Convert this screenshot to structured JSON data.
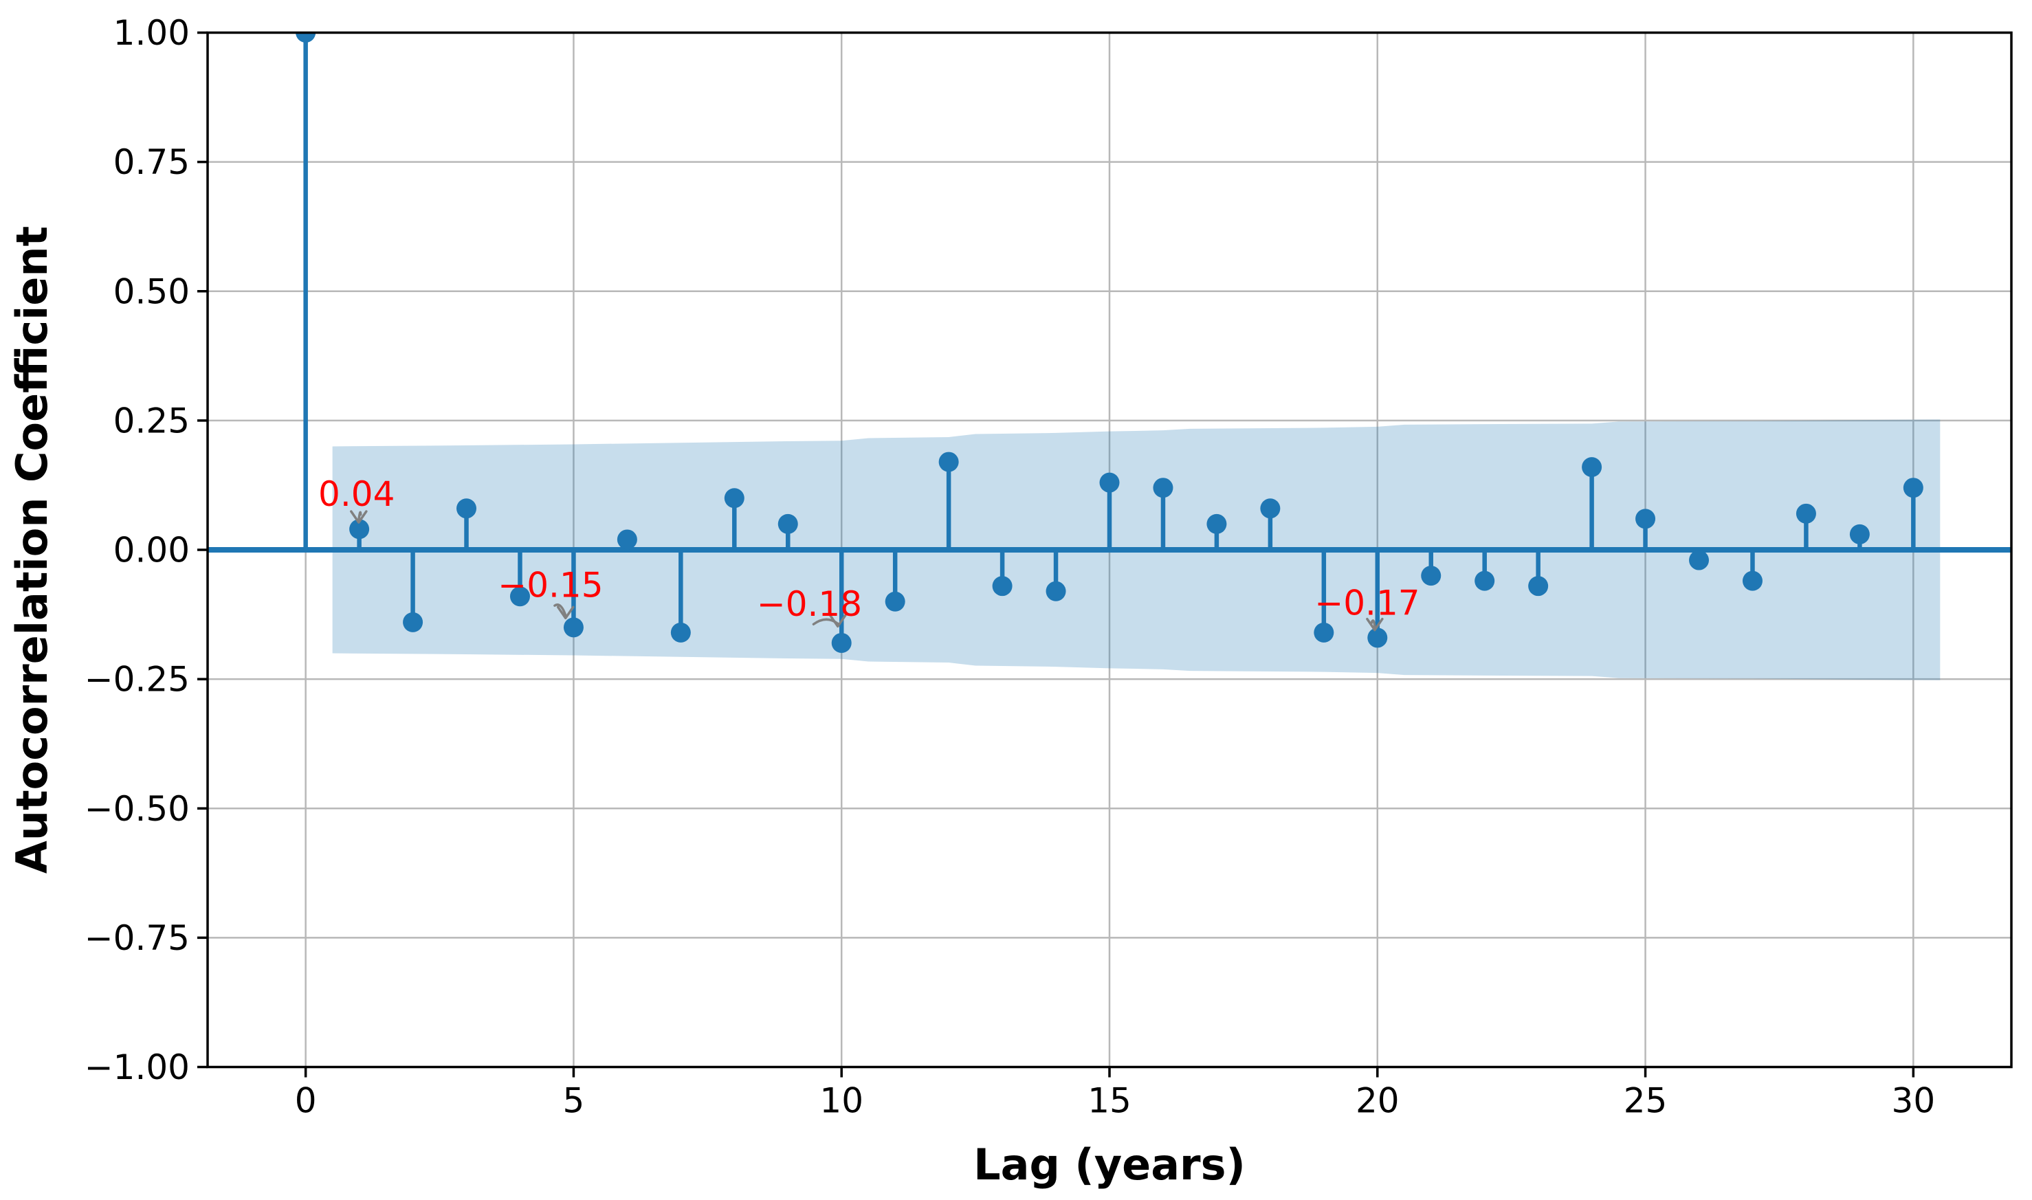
{
  "chart_data": {
    "type": "scatter",
    "subtype": "stem-acf",
    "title": "",
    "xlabel": "Lag (years)",
    "ylabel": "Autocorrelation Coefficient",
    "x": [
      0,
      1,
      2,
      3,
      4,
      5,
      6,
      7,
      8,
      9,
      10,
      11,
      12,
      13,
      14,
      15,
      16,
      17,
      18,
      19,
      20,
      21,
      22,
      23,
      24,
      25,
      26,
      27,
      28,
      29,
      30
    ],
    "values": [
      1.0,
      0.04,
      -0.14,
      0.08,
      -0.09,
      -0.15,
      0.02,
      -0.16,
      0.1,
      0.05,
      -0.18,
      -0.1,
      0.17,
      -0.07,
      -0.08,
      0.13,
      0.12,
      0.05,
      0.08,
      -0.16,
      -0.17,
      -0.05,
      -0.06,
      -0.07,
      0.16,
      0.06,
      -0.02,
      -0.06,
      0.07,
      0.03,
      0.12
    ],
    "xlim": [
      -1.83,
      31.83
    ],
    "ylim": [
      -1.0,
      1.0
    ],
    "xticks": [
      0,
      5,
      10,
      15,
      20,
      25,
      30
    ],
    "xtick_labels": [
      "0",
      "5",
      "10",
      "15",
      "20",
      "25",
      "30"
    ],
    "yticks": [
      1.0,
      0.75,
      0.5,
      0.25,
      0.0,
      -0.25,
      -0.5,
      -0.75,
      -1.0
    ],
    "ytick_labels": [
      "1.00",
      "0.75",
      "0.50",
      "0.25",
      "0.00",
      "−0.25",
      "−0.50",
      "−0.75",
      "−1.00"
    ],
    "grid": true,
    "legend": "none",
    "confidence_band": {
      "x": [
        0.5,
        3,
        5,
        7,
        9,
        10,
        10.5,
        12,
        12.5,
        14,
        15,
        16,
        16.5,
        19,
        20,
        20.5,
        22,
        24,
        24.5,
        27,
        29,
        30.5
      ],
      "upper": [
        0.2,
        0.202,
        0.204,
        0.207,
        0.21,
        0.211,
        0.216,
        0.218,
        0.224,
        0.226,
        0.229,
        0.231,
        0.234,
        0.236,
        0.238,
        0.242,
        0.243,
        0.244,
        0.248,
        0.249,
        0.251,
        0.252
      ],
      "lower_is_mirror": true
    },
    "annotations": [
      {
        "text": "0.04",
        "target_lag": 1,
        "target_value": 0.04,
        "text_lag": 0.95,
        "text_value": 0.108,
        "tip_lag": 0.99,
        "tip_value": 0.053
      },
      {
        "text": "−0.15",
        "target_lag": 5,
        "target_value": -0.15,
        "text_lag": 4.57,
        "text_value": -0.068,
        "tip_lag": 4.85,
        "tip_value": -0.132
      },
      {
        "text": "−0.18",
        "target_lag": 10,
        "target_value": -0.18,
        "text_lag": 9.4,
        "text_value": -0.104,
        "tip_lag": 9.93,
        "tip_value": -0.148
      },
      {
        "text": "−0.17",
        "target_lag": 20,
        "target_value": -0.17,
        "text_lag": 19.81,
        "text_value": -0.102,
        "tip_lag": 19.95,
        "tip_value": -0.155
      }
    ],
    "colors": {
      "stem": "#1f77b4",
      "marker": "#1f77b4",
      "zero_line": "#1f77b4",
      "band_fill": "rgba(31,119,180,0.25)",
      "grid": "#b8b8b8",
      "spine": "#000000",
      "annotation_text": "#ff0000",
      "annotation_arrow": "#808080",
      "tick_text": "#000000",
      "background": "#ffffff"
    }
  }
}
